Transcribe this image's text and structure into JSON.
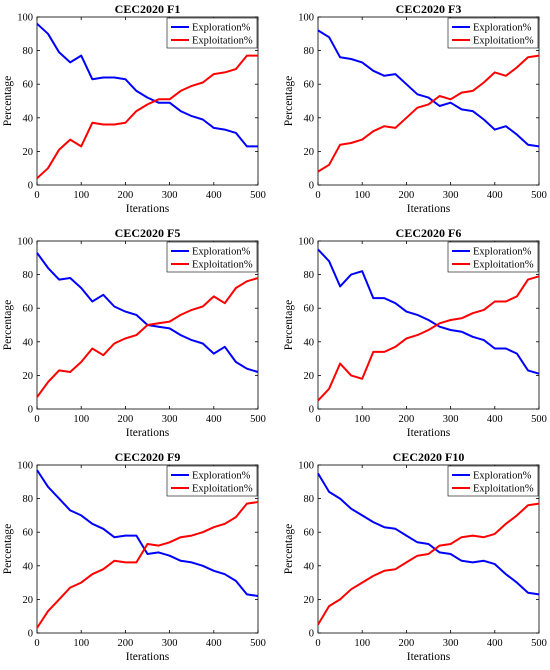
{
  "chart_data": [
    {
      "type": "line",
      "title": "CEC2020 F1",
      "xlabel": "Iterations",
      "ylabel": "Percentage",
      "xlim": [
        0,
        500
      ],
      "ylim": [
        0,
        100
      ],
      "xticks": [
        0,
        100,
        200,
        300,
        400,
        500
      ],
      "yticks": [
        0,
        20,
        40,
        60,
        80,
        100
      ],
      "grid": false,
      "legend_position": "top-right",
      "x": [
        0,
        25,
        50,
        75,
        100,
        125,
        150,
        175,
        200,
        225,
        250,
        275,
        300,
        325,
        350,
        375,
        400,
        425,
        450,
        475,
        500
      ],
      "series": [
        {
          "name": "Exploration%",
          "color": "#0000ff",
          "values": [
            96,
            90,
            79,
            73,
            77,
            63,
            64,
            64,
            63,
            56,
            52,
            49,
            49,
            44,
            41,
            39,
            34,
            33,
            31,
            23,
            23
          ]
        },
        {
          "name": "Exploitation%",
          "color": "#ff0000",
          "values": [
            4,
            10,
            21,
            27,
            23,
            37,
            36,
            36,
            37,
            44,
            48,
            51,
            51,
            56,
            59,
            61,
            66,
            67,
            69,
            77,
            77
          ]
        }
      ]
    },
    {
      "type": "line",
      "title": "CEC2020 F3",
      "xlabel": "Iterations",
      "ylabel": "Percentage",
      "xlim": [
        0,
        500
      ],
      "ylim": [
        0,
        100
      ],
      "xticks": [
        0,
        100,
        200,
        300,
        400,
        500
      ],
      "yticks": [
        0,
        20,
        40,
        60,
        80,
        100
      ],
      "grid": false,
      "legend_position": "top-right",
      "x": [
        0,
        25,
        50,
        75,
        100,
        125,
        150,
        175,
        200,
        225,
        250,
        275,
        300,
        325,
        350,
        375,
        400,
        425,
        450,
        475,
        500
      ],
      "series": [
        {
          "name": "Exploration%",
          "color": "#0000ff",
          "values": [
            92,
            88,
            76,
            75,
            73,
            68,
            65,
            66,
            60,
            54,
            52,
            47,
            49,
            45,
            44,
            39,
            33,
            35,
            30,
            24,
            23
          ]
        },
        {
          "name": "Exploitation%",
          "color": "#ff0000",
          "values": [
            8,
            12,
            24,
            25,
            27,
            32,
            35,
            34,
            40,
            46,
            48,
            53,
            51,
            55,
            56,
            61,
            67,
            65,
            70,
            76,
            77
          ]
        }
      ]
    },
    {
      "type": "line",
      "title": "CEC2020 F5",
      "xlabel": "Iterations",
      "ylabel": "Percentage",
      "xlim": [
        0,
        500
      ],
      "ylim": [
        0,
        100
      ],
      "xticks": [
        0,
        100,
        200,
        300,
        400,
        500
      ],
      "yticks": [
        0,
        20,
        40,
        60,
        80,
        100
      ],
      "grid": false,
      "legend_position": "top-right",
      "x": [
        0,
        25,
        50,
        75,
        100,
        125,
        150,
        175,
        200,
        225,
        250,
        275,
        300,
        325,
        350,
        375,
        400,
        425,
        450,
        475,
        500
      ],
      "series": [
        {
          "name": "Exploration%",
          "color": "#0000ff",
          "values": [
            93,
            84,
            77,
            78,
            72,
            64,
            68,
            61,
            58,
            56,
            50,
            49,
            48,
            44,
            41,
            39,
            33,
            37,
            28,
            24,
            22
          ]
        },
        {
          "name": "Exploitation%",
          "color": "#ff0000",
          "values": [
            7,
            16,
            23,
            22,
            28,
            36,
            32,
            39,
            42,
            44,
            50,
            51,
            52,
            56,
            59,
            61,
            67,
            63,
            72,
            76,
            78
          ]
        }
      ]
    },
    {
      "type": "line",
      "title": "CEC2020 F6",
      "xlabel": "Iterations",
      "ylabel": "Percentage",
      "xlim": [
        0,
        500
      ],
      "ylim": [
        0,
        100
      ],
      "xticks": [
        0,
        100,
        200,
        300,
        400,
        500
      ],
      "yticks": [
        0,
        20,
        40,
        60,
        80,
        100
      ],
      "grid": false,
      "legend_position": "top-right",
      "x": [
        0,
        25,
        50,
        75,
        100,
        125,
        150,
        175,
        200,
        225,
        250,
        275,
        300,
        325,
        350,
        375,
        400,
        425,
        450,
        475,
        500
      ],
      "series": [
        {
          "name": "Exploration%",
          "color": "#0000ff",
          "values": [
            95,
            88,
            73,
            80,
            82,
            66,
            66,
            63,
            58,
            56,
            53,
            49,
            47,
            46,
            43,
            41,
            36,
            36,
            33,
            23,
            21
          ]
        },
        {
          "name": "Exploitation%",
          "color": "#ff0000",
          "values": [
            5,
            12,
            27,
            20,
            18,
            34,
            34,
            37,
            42,
            44,
            47,
            51,
            53,
            54,
            57,
            59,
            64,
            64,
            67,
            77,
            79
          ]
        }
      ]
    },
    {
      "type": "line",
      "title": "CEC2020 F9",
      "xlabel": "Iterations",
      "ylabel": "Percentage",
      "xlim": [
        0,
        500
      ],
      "ylim": [
        0,
        100
      ],
      "xticks": [
        0,
        100,
        200,
        300,
        400,
        500
      ],
      "yticks": [
        0,
        20,
        40,
        60,
        80,
        100
      ],
      "grid": false,
      "legend_position": "top-right",
      "x": [
        0,
        25,
        50,
        75,
        100,
        125,
        150,
        175,
        200,
        225,
        250,
        275,
        300,
        325,
        350,
        375,
        400,
        425,
        450,
        475,
        500
      ],
      "series": [
        {
          "name": "Exploration%",
          "color": "#0000ff",
          "values": [
            97,
            87,
            80,
            73,
            70,
            65,
            62,
            57,
            58,
            58,
            47,
            48,
            46,
            43,
            42,
            40,
            37,
            35,
            31,
            23,
            22
          ]
        },
        {
          "name": "Exploitation%",
          "color": "#ff0000",
          "values": [
            3,
            13,
            20,
            27,
            30,
            35,
            38,
            43,
            42,
            42,
            53,
            52,
            54,
            57,
            58,
            60,
            63,
            65,
            69,
            77,
            78
          ]
        }
      ]
    },
    {
      "type": "line",
      "title": "CEC2020 F10",
      "xlabel": "Iterations",
      "ylabel": "Percentage",
      "xlim": [
        0,
        500
      ],
      "ylim": [
        0,
        100
      ],
      "xticks": [
        0,
        100,
        200,
        300,
        400,
        500
      ],
      "yticks": [
        0,
        20,
        40,
        60,
        80,
        100
      ],
      "grid": false,
      "legend_position": "top-right",
      "x": [
        0,
        25,
        50,
        75,
        100,
        125,
        150,
        175,
        200,
        225,
        250,
        275,
        300,
        325,
        350,
        375,
        400,
        425,
        450,
        475,
        500
      ],
      "series": [
        {
          "name": "Exploration%",
          "color": "#0000ff",
          "values": [
            95,
            84,
            80,
            74,
            70,
            66,
            63,
            62,
            58,
            54,
            53,
            48,
            47,
            43,
            42,
            43,
            41,
            35,
            30,
            24,
            23
          ]
        },
        {
          "name": "Exploitation%",
          "color": "#ff0000",
          "values": [
            5,
            16,
            20,
            26,
            30,
            34,
            37,
            38,
            42,
            46,
            47,
            52,
            53,
            57,
            58,
            57,
            59,
            65,
            70,
            76,
            77
          ]
        }
      ]
    }
  ]
}
